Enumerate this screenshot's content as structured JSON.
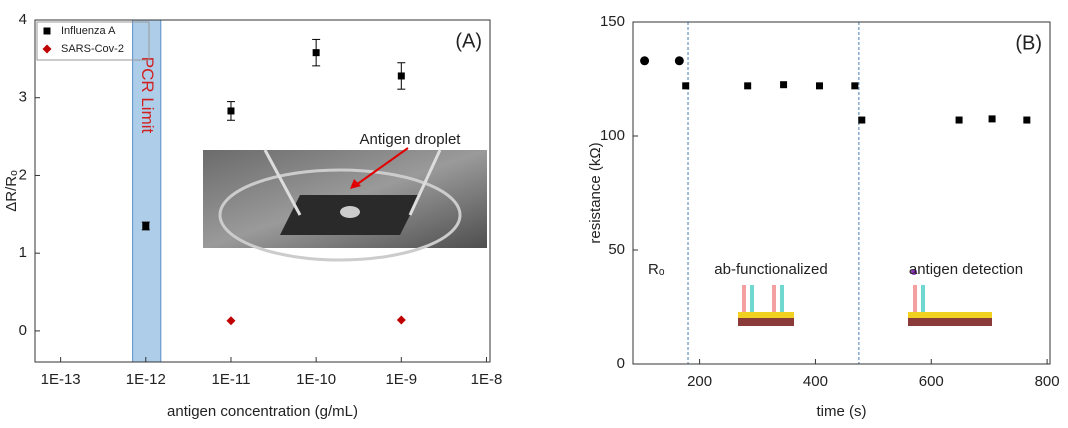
{
  "chart_data": [
    {
      "type": "scatter",
      "xlog": true,
      "xlabel": "antigen concentration (g/mL)",
      "ylabel": "ΔR/Rₒ",
      "xlim": [
        5e-14,
        1.1e-08
      ],
      "ylim": [
        -0.4,
        4
      ],
      "xticks": [
        {
          "value": 1e-13,
          "label": "1E-13"
        },
        {
          "value": 1e-12,
          "label": "1E-12"
        },
        {
          "value": 1e-11,
          "label": "1E-11"
        },
        {
          "value": 1e-10,
          "label": "1E-10"
        },
        {
          "value": 1e-09,
          "label": "1E-9"
        },
        {
          "value": 1e-08,
          "label": "1E-8"
        }
      ],
      "yticks": [
        0,
        1,
        2,
        3,
        4
      ],
      "legend": "upper left",
      "series": [
        {
          "name": "Influenza A",
          "color": "#000000",
          "marker": "square",
          "x": [
            1e-12,
            1e-11,
            1e-10,
            1e-09
          ],
          "values": [
            1.35,
            2.83,
            3.58,
            3.28
          ],
          "errors": [
            0.05,
            0.12,
            0.17,
            0.17
          ]
        },
        {
          "name": "SARS-Cov-2",
          "color": "#c00000",
          "marker": "diamond",
          "x": [
            1e-11,
            1e-09
          ],
          "values": [
            0.13,
            0.14
          ]
        }
      ],
      "band": {
        "x": [
          7e-13,
          1.5e-12
        ],
        "label": "PCR Limit",
        "color": "#aecde9"
      },
      "annotation": "Antigen droplet",
      "panel_label": "(A)"
    },
    {
      "type": "scatter",
      "xlog": false,
      "xlabel": "time (s)",
      "ylabel": "resistance (kΩ)",
      "xlim": [
        85,
        805
      ],
      "ylim": [
        0,
        150
      ],
      "xticks": [
        200,
        400,
        600,
        800
      ],
      "yticks": [
        0,
        50,
        100,
        150
      ],
      "series": [
        {
          "color": "#000000",
          "marker": "circle",
          "x": [
            105,
            165
          ],
          "values": [
            133,
            133
          ]
        },
        {
          "color": "#000000",
          "marker": "square",
          "x": [
            176,
            283,
            345,
            407,
            468,
            480,
            648,
            705,
            765
          ],
          "values": [
            122,
            122,
            122.5,
            122,
            122,
            107,
            107,
            107.5,
            107
          ]
        }
      ],
      "vlines": [
        180,
        475
      ],
      "region_labels": [
        "Rₒ",
        "ab-functionalized",
        "antigen detection"
      ],
      "panel_label": "(B)"
    }
  ]
}
